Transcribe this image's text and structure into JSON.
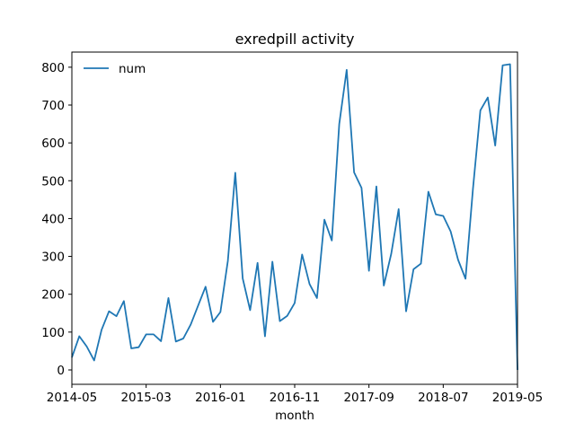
{
  "chart_data": {
    "type": "line",
    "title": "exredpill activity",
    "xlabel": "month",
    "ylabel": "",
    "xlim": [
      "2014-05",
      "2019-05"
    ],
    "ylim": [
      -38,
      840
    ],
    "grid": false,
    "legend": {
      "position": "top-left",
      "entries": [
        "num"
      ]
    },
    "x_ticks": [
      "2014-05",
      "2015-03",
      "2016-01",
      "2016-11",
      "2017-09",
      "2018-07",
      "2019-05"
    ],
    "y_ticks": [
      "0",
      "100",
      "200",
      "300",
      "400",
      "500",
      "600",
      "700",
      "800"
    ],
    "series": [
      {
        "name": "num",
        "color": "#1f77b4",
        "points": [
          {
            "x": "2014-05",
            "y": 33
          },
          {
            "x": "2014-06",
            "y": 89
          },
          {
            "x": "2014-07",
            "y": 62
          },
          {
            "x": "2014-08",
            "y": 25
          },
          {
            "x": "2014-09",
            "y": 106
          },
          {
            "x": "2014-10",
            "y": 155
          },
          {
            "x": "2014-11",
            "y": 142
          },
          {
            "x": "2014-12",
            "y": 182
          },
          {
            "x": "2015-01",
            "y": 57
          },
          {
            "x": "2015-02",
            "y": 60
          },
          {
            "x": "2015-03",
            "y": 94
          },
          {
            "x": "2015-04",
            "y": 94
          },
          {
            "x": "2015-05",
            "y": 76
          },
          {
            "x": "2015-06",
            "y": 190
          },
          {
            "x": "2015-07",
            "y": 75
          },
          {
            "x": "2015-08",
            "y": 83
          },
          {
            "x": "2015-09",
            "y": 120
          },
          {
            "x": "2015-10",
            "y": 170
          },
          {
            "x": "2015-11",
            "y": 220
          },
          {
            "x": "2015-12",
            "y": 127
          },
          {
            "x": "2016-01",
            "y": 153
          },
          {
            "x": "2016-02",
            "y": 288
          },
          {
            "x": "2016-03",
            "y": 521
          },
          {
            "x": "2016-04",
            "y": 242
          },
          {
            "x": "2016-05",
            "y": 158
          },
          {
            "x": "2016-06",
            "y": 283
          },
          {
            "x": "2016-07",
            "y": 89
          },
          {
            "x": "2016-08",
            "y": 286
          },
          {
            "x": "2016-09",
            "y": 129
          },
          {
            "x": "2016-10",
            "y": 143
          },
          {
            "x": "2016-11",
            "y": 177
          },
          {
            "x": "2016-12",
            "y": 305
          },
          {
            "x": "2017-01",
            "y": 227
          },
          {
            "x": "2017-02",
            "y": 190
          },
          {
            "x": "2017-03",
            "y": 397
          },
          {
            "x": "2017-04",
            "y": 342
          },
          {
            "x": "2017-05",
            "y": 650
          },
          {
            "x": "2017-06",
            "y": 793
          },
          {
            "x": "2017-07",
            "y": 522
          },
          {
            "x": "2017-08",
            "y": 481
          },
          {
            "x": "2017-09",
            "y": 262
          },
          {
            "x": "2017-10",
            "y": 485
          },
          {
            "x": "2017-11",
            "y": 223
          },
          {
            "x": "2017-12",
            "y": 307
          },
          {
            "x": "2018-01",
            "y": 425
          },
          {
            "x": "2018-02",
            "y": 155
          },
          {
            "x": "2018-03",
            "y": 266
          },
          {
            "x": "2018-04",
            "y": 281
          },
          {
            "x": "2018-05",
            "y": 471
          },
          {
            "x": "2018-06",
            "y": 411
          },
          {
            "x": "2018-07",
            "y": 407
          },
          {
            "x": "2018-08",
            "y": 366
          },
          {
            "x": "2018-09",
            "y": 291
          },
          {
            "x": "2018-10",
            "y": 241
          },
          {
            "x": "2018-11",
            "y": 478
          },
          {
            "x": "2018-12",
            "y": 686
          },
          {
            "x": "2019-01",
            "y": 720
          },
          {
            "x": "2019-02",
            "y": 593
          },
          {
            "x": "2019-03",
            "y": 805
          },
          {
            "x": "2019-04",
            "y": 808
          },
          {
            "x": "2019-05",
            "y": 0
          }
        ]
      }
    ]
  }
}
